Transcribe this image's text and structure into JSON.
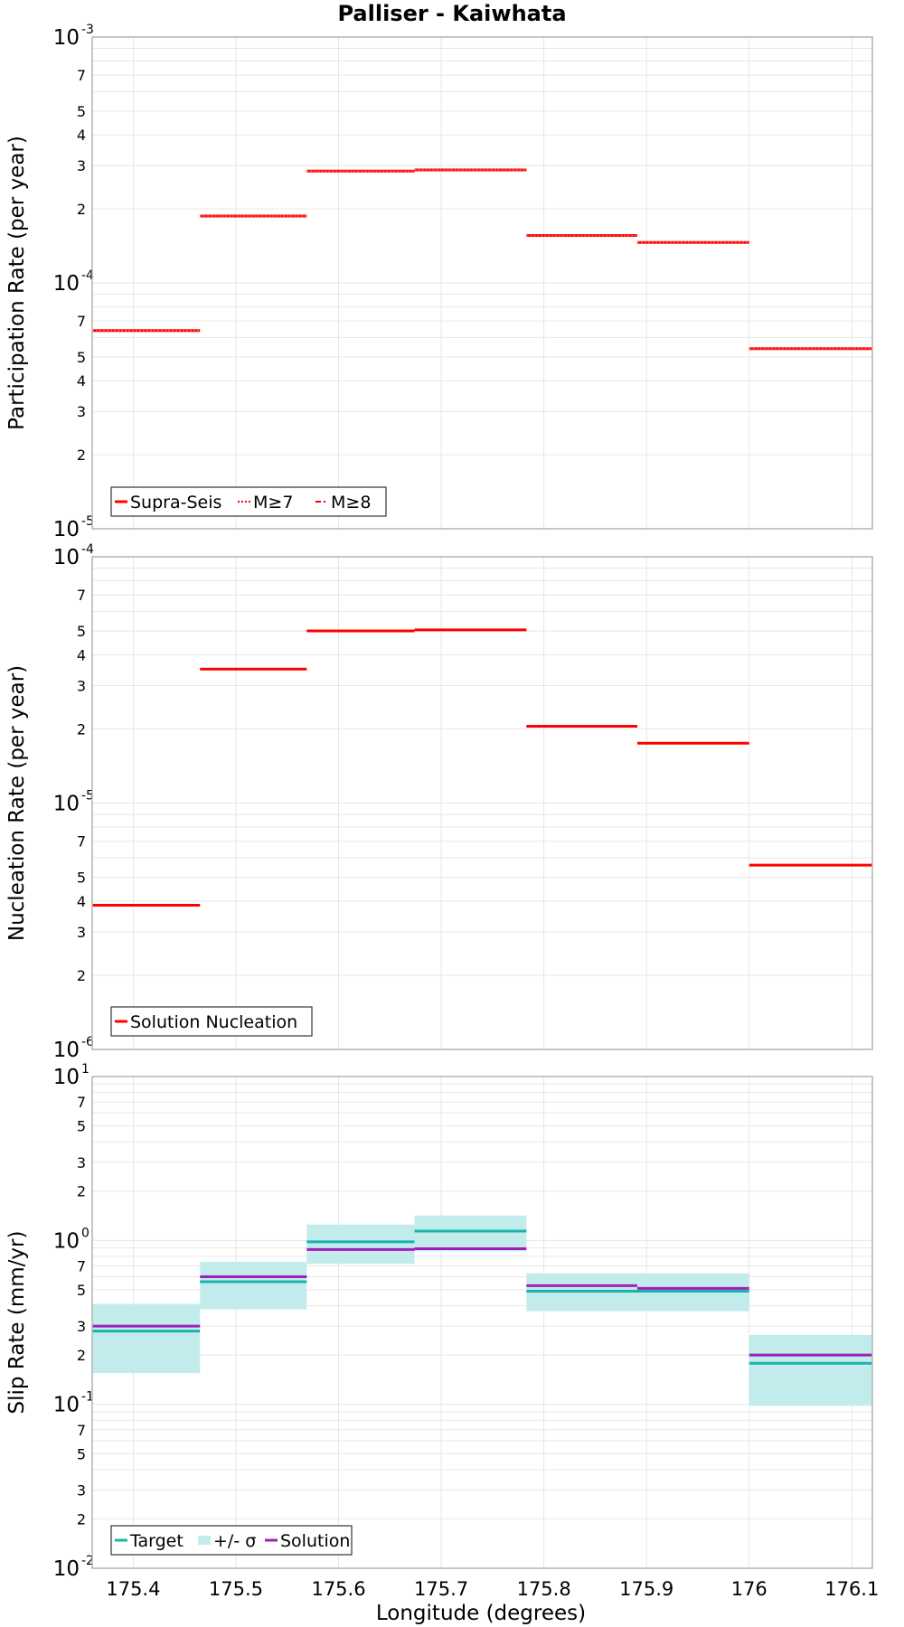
{
  "title": "Palliser - Kaiwhata",
  "xlabel": "Longitude (degrees)",
  "x_ticks": [
    "175.4",
    "175.5",
    "175.6",
    "175.7",
    "175.8",
    "175.9",
    "176",
    "176.1"
  ],
  "colors": {
    "red": "#ff0000",
    "target": "#1ab3ad",
    "band": "#c2ecec",
    "solution": "#a11fb8",
    "grid": "#e6e6e6",
    "frame": "#b4b4b4"
  },
  "chart_data": [
    {
      "type": "line",
      "ylabel": "Participation Rate (per year)",
      "yscale": "log",
      "xlim": [
        175.36,
        176.12
      ],
      "ylim": [
        1e-05,
        0.001
      ],
      "legend": {
        "position": "bottom-left",
        "entries": [
          "Supra-Seis",
          "M≥7",
          "M≥8"
        ]
      },
      "y_ticks": {
        "major": [
          "10-5",
          "10-4",
          "10-3"
        ],
        "minor": [
          "2",
          "3",
          "4",
          "5",
          "7"
        ]
      },
      "series": [
        {
          "name": "Supra-Seis",
          "style": "solid",
          "segments": [
            {
              "x": [
                175.36,
                175.465
              ],
              "y": 6.4e-05
            },
            {
              "x": [
                175.465,
                175.569
              ],
              "y": 0.000187
            },
            {
              "x": [
                175.569,
                175.674
              ],
              "y": 0.000285
            },
            {
              "x": [
                175.674,
                175.783
              ],
              "y": 0.000288
            },
            {
              "x": [
                175.783,
                175.891
              ],
              "y": 0.000156
            },
            {
              "x": [
                175.891,
                176.0
              ],
              "y": 0.000146
            },
            {
              "x": [
                176.0,
                176.12
              ],
              "y": 5.4e-05
            }
          ]
        },
        {
          "name": "M≥7",
          "style": "dotted",
          "segments": [
            {
              "x": [
                175.36,
                175.465
              ],
              "y": 6.4e-05
            },
            {
              "x": [
                175.465,
                175.569
              ],
              "y": 0.000187
            },
            {
              "x": [
                175.569,
                175.674
              ],
              "y": 0.000285
            },
            {
              "x": [
                175.674,
                175.783
              ],
              "y": 0.000288
            },
            {
              "x": [
                175.783,
                175.891
              ],
              "y": 0.000156
            },
            {
              "x": [
                175.891,
                176.0
              ],
              "y": 0.000146
            },
            {
              "x": [
                176.0,
                176.12
              ],
              "y": 5.4e-05
            }
          ]
        },
        {
          "name": "M≥8",
          "style": "dash-dot",
          "segments": []
        }
      ]
    },
    {
      "type": "line",
      "ylabel": "Nucleation Rate (per year)",
      "yscale": "log",
      "xlim": [
        175.36,
        176.12
      ],
      "ylim": [
        1e-06,
        0.0001
      ],
      "legend": {
        "position": "bottom-left",
        "entries": [
          "Solution Nucleation"
        ]
      },
      "y_ticks": {
        "major": [
          "10-6",
          "10-5",
          "10-4"
        ],
        "minor": [
          "2",
          "3",
          "4",
          "5",
          "7"
        ]
      },
      "series": [
        {
          "name": "Solution Nucleation",
          "style": "solid",
          "segments": [
            {
              "x": [
                175.36,
                175.465
              ],
              "y": 3.85e-06
            },
            {
              "x": [
                175.465,
                175.569
              ],
              "y": 3.5e-05
            },
            {
              "x": [
                175.569,
                175.674
              ],
              "y": 5e-05
            },
            {
              "x": [
                175.674,
                175.783
              ],
              "y": 5.05e-05
            },
            {
              "x": [
                175.783,
                175.891
              ],
              "y": 2.05e-05
            },
            {
              "x": [
                175.891,
                176.0
              ],
              "y": 1.75e-05
            },
            {
              "x": [
                176.0,
                176.12
              ],
              "y": 5.6e-06
            }
          ]
        }
      ]
    },
    {
      "type": "line",
      "ylabel": "Slip Rate (mm/yr)",
      "yscale": "log",
      "xlim": [
        175.36,
        176.12
      ],
      "ylim": [
        0.01,
        10
      ],
      "legend": {
        "position": "bottom-left",
        "entries": [
          "Target",
          "+/- σ",
          "Solution"
        ]
      },
      "y_ticks": {
        "major": [
          "10-2",
          "10-1",
          "100",
          "101"
        ],
        "minor": [
          "2",
          "3",
          "5",
          "7"
        ]
      },
      "series": [
        {
          "name": "+/- σ",
          "style": "band",
          "segments": [
            {
              "x": [
                175.36,
                175.465
              ],
              "low": 0.155,
              "high": 0.41
            },
            {
              "x": [
                175.465,
                175.569
              ],
              "low": 0.38,
              "high": 0.74
            },
            {
              "x": [
                175.569,
                175.674
              ],
              "low": 0.72,
              "high": 1.25
            },
            {
              "x": [
                175.674,
                175.783
              ],
              "low": 0.86,
              "high": 1.42
            },
            {
              "x": [
                175.783,
                175.891
              ],
              "low": 0.37,
              "high": 0.63
            },
            {
              "x": [
                175.891,
                176.0
              ],
              "low": 0.37,
              "high": 0.63
            },
            {
              "x": [
                176.0,
                176.12
              ],
              "low": 0.098,
              "high": 0.265
            }
          ]
        },
        {
          "name": "Target",
          "style": "solid",
          "segments": [
            {
              "x": [
                175.36,
                175.465
              ],
              "y": 0.28
            },
            {
              "x": [
                175.465,
                175.569
              ],
              "y": 0.56
            },
            {
              "x": [
                175.569,
                175.674
              ],
              "y": 0.98
            },
            {
              "x": [
                175.674,
                175.783
              ],
              "y": 1.14
            },
            {
              "x": [
                175.783,
                175.891
              ],
              "y": 0.49
            },
            {
              "x": [
                175.891,
                176.0
              ],
              "y": 0.49
            },
            {
              "x": [
                176.0,
                176.12
              ],
              "y": 0.178
            }
          ]
        },
        {
          "name": "Solution",
          "style": "solid",
          "segments": [
            {
              "x": [
                175.36,
                175.465
              ],
              "y": 0.3
            },
            {
              "x": [
                175.465,
                175.569
              ],
              "y": 0.6
            },
            {
              "x": [
                175.569,
                175.674
              ],
              "y": 0.88
            },
            {
              "x": [
                175.674,
                175.783
              ],
              "y": 0.89
            },
            {
              "x": [
                175.783,
                175.891
              ],
              "y": 0.53
            },
            {
              "x": [
                175.891,
                176.0
              ],
              "y": 0.51
            },
            {
              "x": [
                176.0,
                176.12
              ],
              "y": 0.2
            }
          ]
        }
      ]
    }
  ]
}
